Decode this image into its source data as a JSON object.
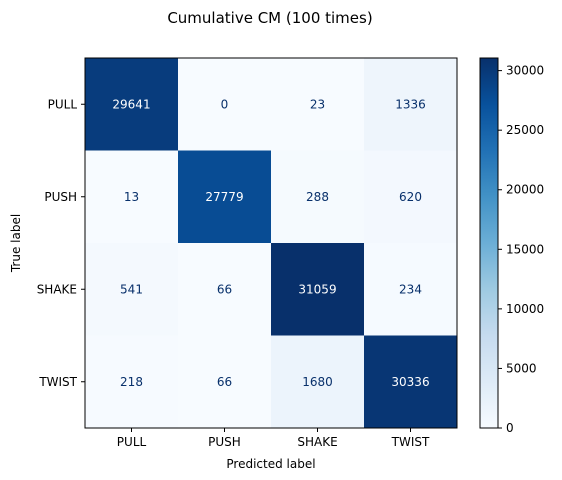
{
  "chart_data": {
    "type": "heatmap",
    "title": "Cumulative CM (100 times)",
    "xlabel": "Predicted label",
    "ylabel": "True label",
    "x_categories": [
      "PULL",
      "PUSH",
      "SHAKE",
      "TWIST"
    ],
    "y_categories": [
      "PULL",
      "PUSH",
      "SHAKE",
      "TWIST"
    ],
    "values": [
      [
        29641,
        0,
        23,
        1336
      ],
      [
        13,
        27779,
        288,
        620
      ],
      [
        541,
        66,
        31059,
        234
      ],
      [
        218,
        66,
        1680,
        30336
      ]
    ],
    "colormap": "Blues",
    "color_range": [
      0,
      31059
    ],
    "colorbar_ticks": [
      0,
      5000,
      10000,
      15000,
      20000,
      25000,
      30000
    ],
    "text_color_light": "#ffffff",
    "text_color_dark": "#08306b"
  }
}
